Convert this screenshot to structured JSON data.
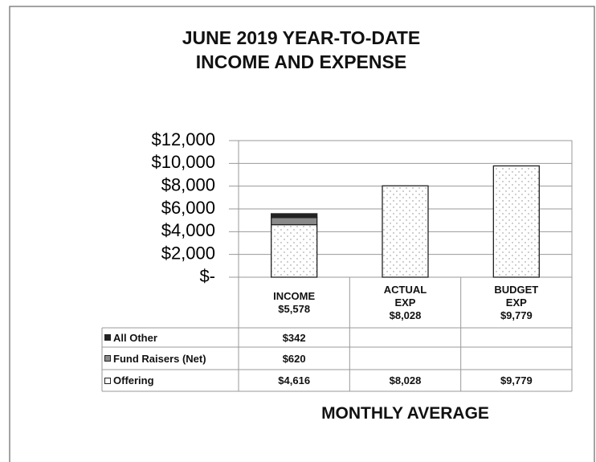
{
  "chart_data": {
    "type": "stacked_bar",
    "title": [
      "JUNE 2019 YEAR-TO-DATE",
      "INCOME AND EXPENSE"
    ],
    "x_label": "MONTHLY AVERAGE",
    "categories": [
      "INCOME",
      "ACTUAL EXP",
      "BUDGET EXP"
    ],
    "category_totals": [
      "$5,578",
      "$8,028",
      "$9,779"
    ],
    "series": [
      {
        "name": "Offering",
        "color": "#ffffff",
        "pattern": "dots",
        "values": [
          4616,
          8028,
          9779
        ],
        "value_labels": [
          "$4,616",
          "$8,028",
          "$9,779"
        ]
      },
      {
        "name": "Fund Raisers (Net)",
        "color": "#8a8a8a",
        "values": [
          620,
          null,
          null
        ],
        "value_labels": [
          "$620",
          null,
          null
        ]
      },
      {
        "name": "All Other",
        "color": "#222222",
        "values": [
          342,
          null,
          null
        ],
        "value_labels": [
          "$342",
          null,
          null
        ]
      }
    ],
    "ylim": [
      0,
      12000
    ],
    "yticks": [
      {
        "value": 0,
        "label": "$-"
      },
      {
        "value": 2000,
        "label": "$2,000"
      },
      {
        "value": 4000,
        "label": "$4,000"
      },
      {
        "value": 6000,
        "label": "$6,000"
      },
      {
        "value": 8000,
        "label": "$8,000"
      },
      {
        "value": 10000,
        "label": "$10,000"
      },
      {
        "value": 12000,
        "label": "$12,000"
      }
    ],
    "grid": true
  }
}
